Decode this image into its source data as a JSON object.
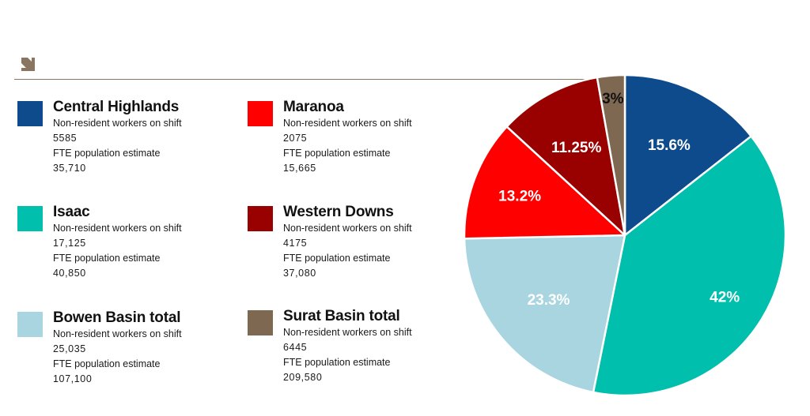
{
  "legend": [
    {
      "name": "Central Highlands",
      "color": "#0d4b8c",
      "label_workers": "Non-resident workers on shift",
      "workers": "5585",
      "label_pop": "FTE population estimate",
      "population": "35,710"
    },
    {
      "name": "Isaac",
      "color": "#00bfad",
      "label_workers": "Non-resident workers on shift",
      "workers": "17,125",
      "label_pop": "FTE population estimate",
      "population": "40,850"
    },
    {
      "name": "Bowen Basin total",
      "color": "#a9d5e0",
      "label_workers": "Non-resident workers on shift",
      "workers": "25,035",
      "label_pop": "FTE population estimate",
      "population": "107,100"
    },
    {
      "name": "Maranoa",
      "color": "#ff0000",
      "label_workers": "Non-resident workers on shift",
      "workers": "2075",
      "label_pop": "FTE population estimate",
      "population": "15,665"
    },
    {
      "name": "Western Downs",
      "color": "#990000",
      "label_workers": "Non-resident workers on shift",
      "workers": "4175",
      "label_pop": "FTE population estimate",
      "population": "37,080"
    },
    {
      "name": "Surat Basin total",
      "color": "#7f6851",
      "label_workers": "Non-resident workers on shift",
      "workers": "6445",
      "label_pop": "FTE population estimate",
      "population": "209,580"
    }
  ],
  "chart_data": {
    "type": "pie",
    "slices": [
      {
        "label": "15.6%",
        "value": 15.6,
        "color": "#0d4b8c",
        "text_color": "#ffffff"
      },
      {
        "label": "42%",
        "value": 42,
        "color": "#00bfad",
        "text_color": "#ffffff"
      },
      {
        "label": "23.3%",
        "value": 23.3,
        "color": "#a9d5e0",
        "text_color": "#ffffff"
      },
      {
        "label": "13.2%",
        "value": 13.2,
        "color": "#ff0000",
        "text_color": "#ffffff"
      },
      {
        "label": "11.25%",
        "value": 11.25,
        "color": "#990000",
        "text_color": "#ffffff"
      },
      {
        "label": "3%",
        "value": 3,
        "color": "#7f6851",
        "text_color": "#111111"
      }
    ]
  }
}
